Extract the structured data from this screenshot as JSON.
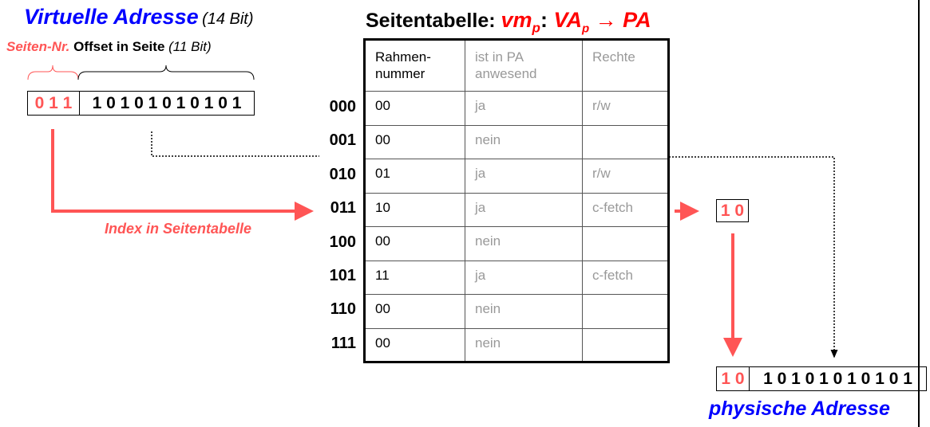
{
  "virtual_address": {
    "title": "Virtuelle Adresse",
    "size": "(14 Bit)",
    "page_label": "Seiten-Nr.",
    "offset_label": "Offset in Seite",
    "offset_size": "(11 Bit)",
    "page_bits": "0 1 1",
    "offset_bits": "1 0 1 0 1 0 1 0 1 0 1"
  },
  "index_label": "Index in Seitentabelle",
  "table": {
    "title": "Seitentabelle:",
    "mapping_vm": "vm",
    "mapping_sub": "p",
    "mapping_colon": ":",
    "mapping_va": "VA",
    "mapping_va_sub": "p",
    "mapping_rest": " → PA",
    "headers": [
      "Rahmen-\nnummer",
      "ist in PA\nanwesend",
      "Rechte"
    ],
    "rows": [
      {
        "index": "000",
        "frame": "00",
        "present": "ja",
        "rights": "r/w"
      },
      {
        "index": "001",
        "frame": "00",
        "present": "nein",
        "rights": ""
      },
      {
        "index": "010",
        "frame": "01",
        "present": "ja",
        "rights": "r/w"
      },
      {
        "index": "011",
        "frame": "10",
        "present": "ja",
        "rights": "c-fetch"
      },
      {
        "index": "100",
        "frame": "00",
        "present": "nein",
        "rights": ""
      },
      {
        "index": "101",
        "frame": "11",
        "present": "ja",
        "rights": "c-fetch"
      },
      {
        "index": "110",
        "frame": "00",
        "present": "nein",
        "rights": ""
      },
      {
        "index": "111",
        "frame": "00",
        "present": "nein",
        "rights": ""
      }
    ]
  },
  "frame_result": "1 0",
  "physical_address": {
    "title": "physische Adresse",
    "frame_bits": "1 0",
    "offset_bits": "1 0 1 0 1 0 1 0 1 0 1"
  },
  "colors": {
    "blue": "#0000ff",
    "red_title": "#ff0000",
    "red_accent": "#ff5555"
  }
}
